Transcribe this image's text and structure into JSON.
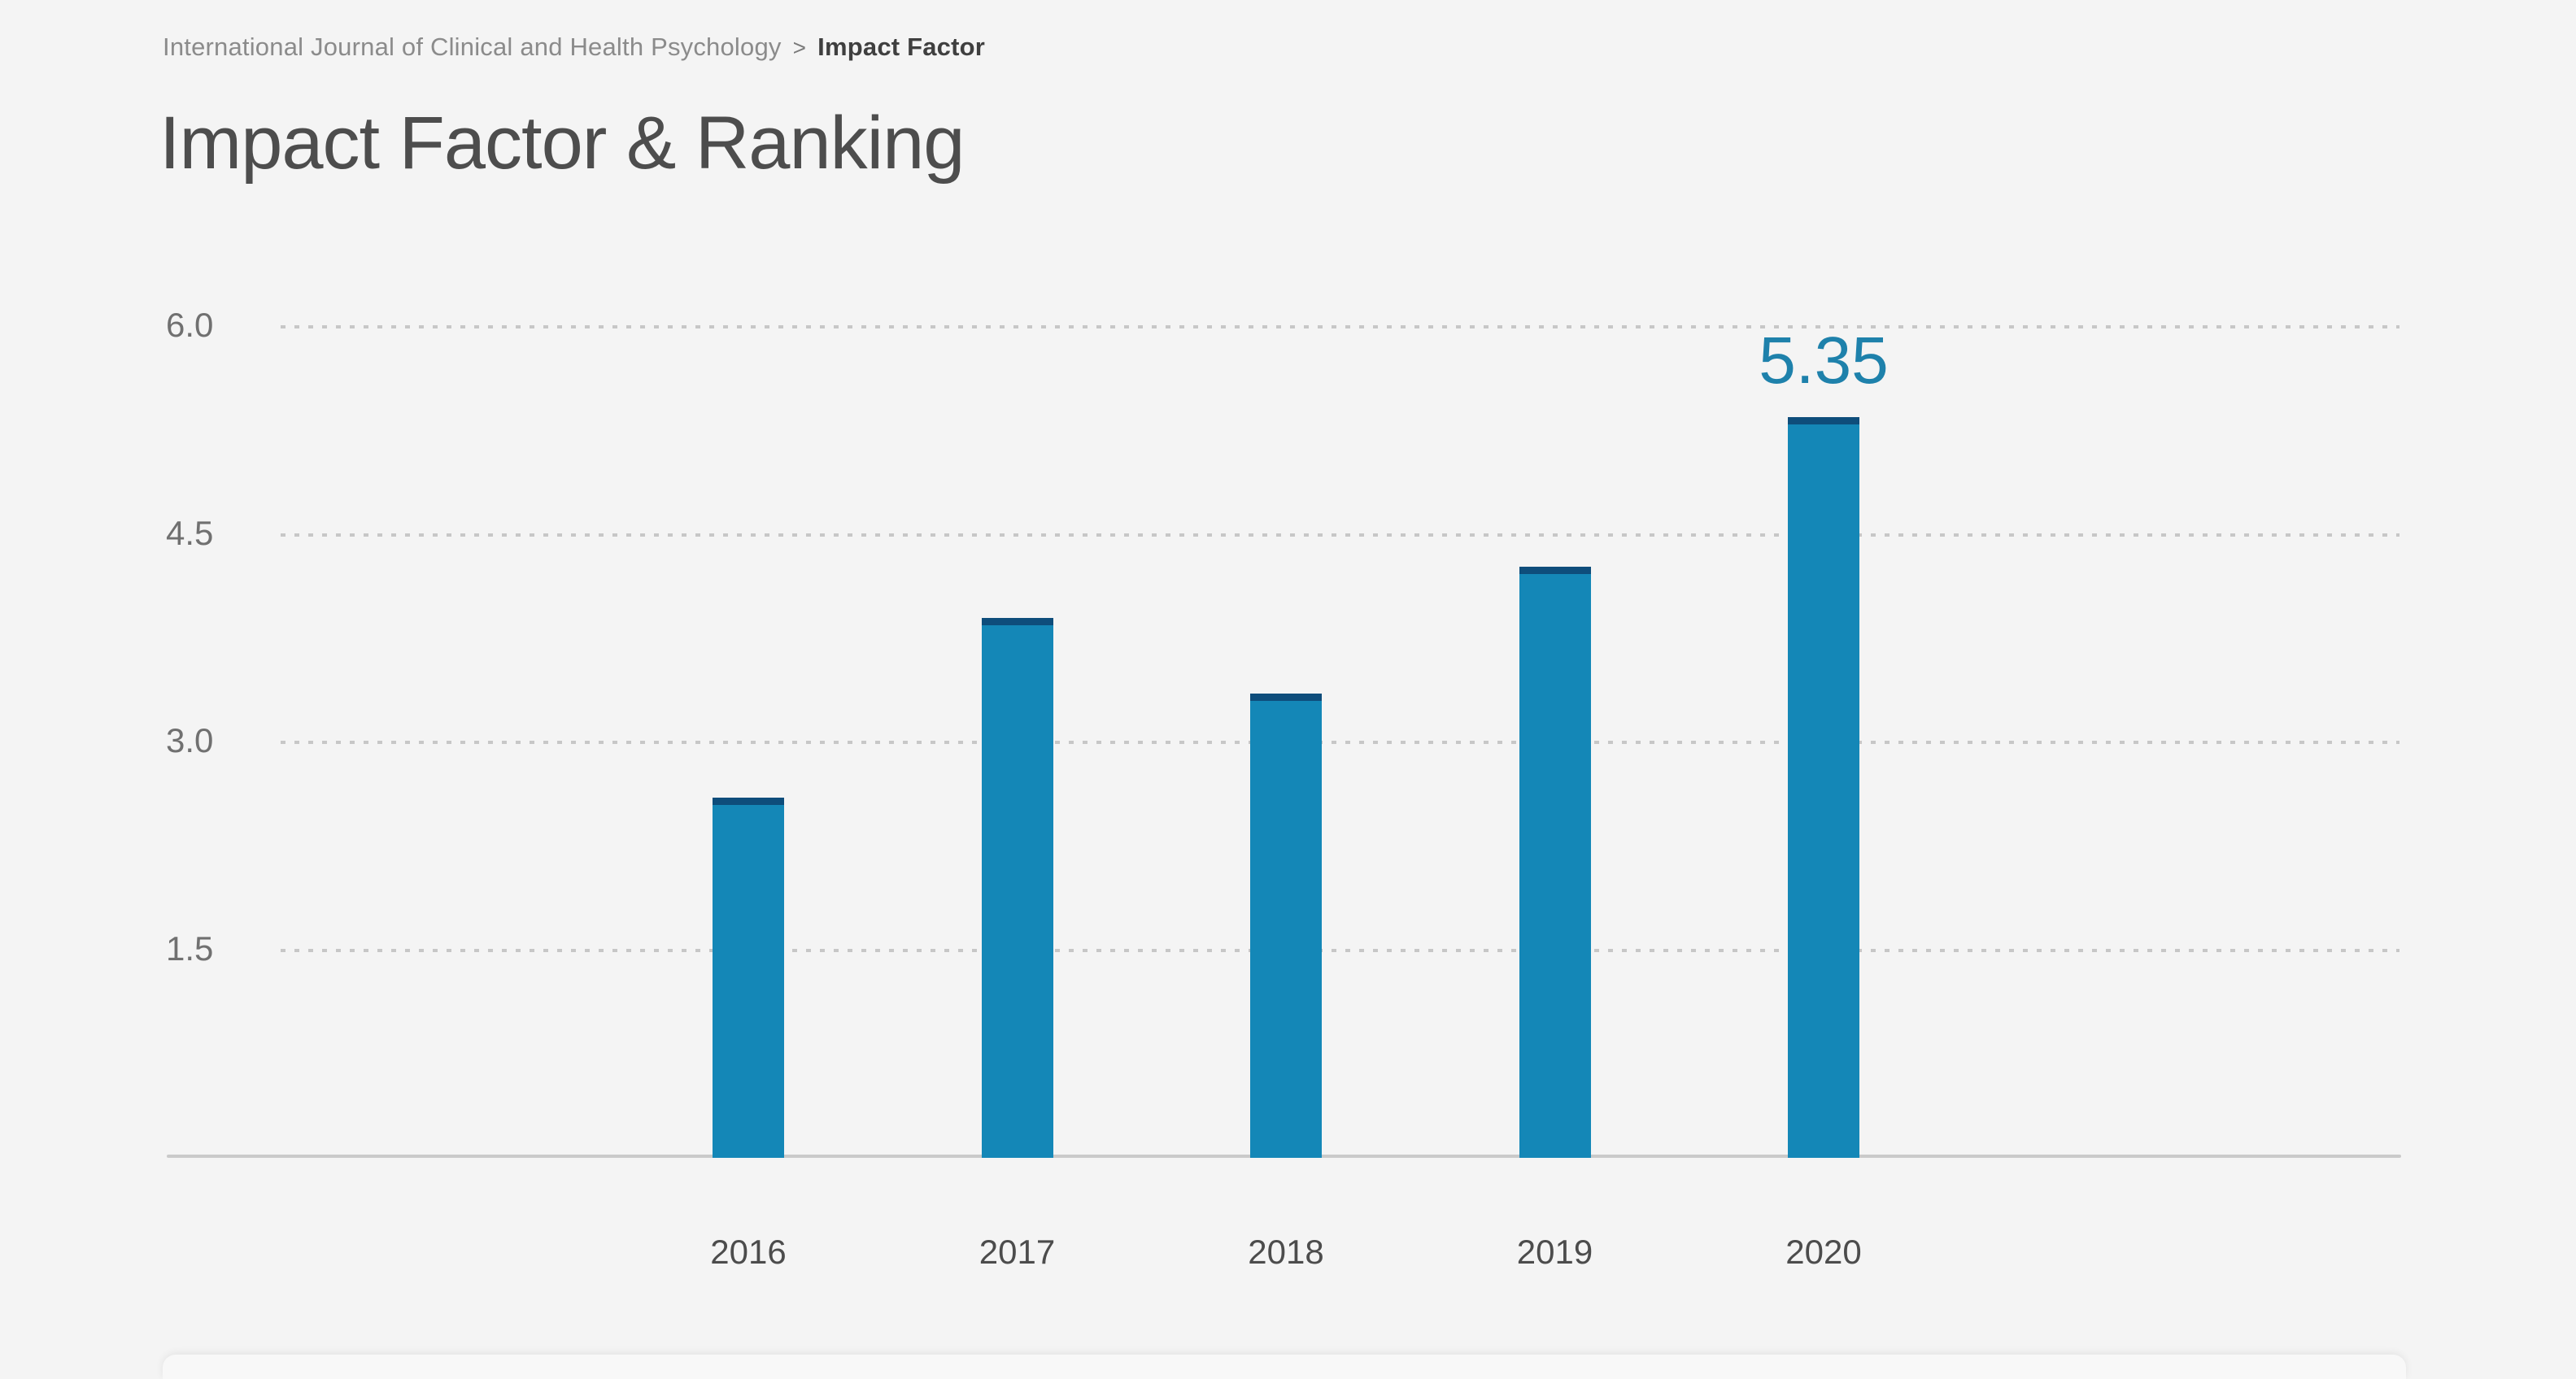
{
  "page": {
    "background": "#f4f4f4"
  },
  "breadcrumb": {
    "journal": "International Journal of Clinical and Health Psychology",
    "separator": ">",
    "current": "Impact Factor"
  },
  "header": {
    "title": "Impact Factor & Ranking"
  },
  "chart_data": {
    "type": "bar",
    "title": "Impact Factor & Ranking",
    "categories": [
      "2016",
      "2017",
      "2018",
      "2019",
      "2020"
    ],
    "values": [
      2.6,
      3.9,
      3.35,
      4.27,
      5.35
    ],
    "value_labels_shown": [
      {
        "category": "2020",
        "text": "5.35"
      }
    ],
    "xlabel": "",
    "ylabel": "",
    "yticks": [
      1.5,
      3.0,
      4.5,
      6.0
    ],
    "ytick_labels": [
      "1.5",
      "3.0",
      "4.5",
      "6.0"
    ],
    "ylim": [
      0,
      6.6
    ],
    "grid": "dotted horizontal gridlines at each ytick",
    "legend": "none",
    "colors": {
      "bar": "#1487b7",
      "bar_cap": "#0e4d7b",
      "value_label": "#1e81ab",
      "gridline": "#c7c7c7",
      "axis_line": "#cacaca",
      "ytick_text": "#707070",
      "xtick_text": "#4c4c4c"
    }
  }
}
